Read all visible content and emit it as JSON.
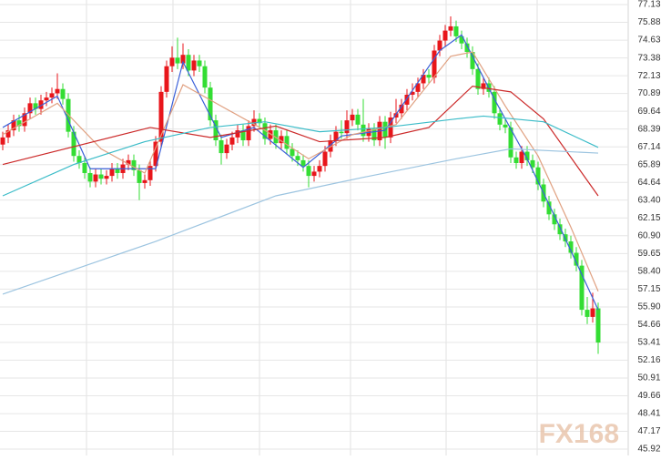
{
  "chart_data": {
    "type": "candlestick",
    "ylim": [
      45.92,
      77.13
    ],
    "yticks": [
      77.13,
      75.88,
      74.63,
      73.38,
      72.13,
      70.89,
      69.64,
      68.39,
      67.14,
      65.89,
      64.64,
      {
        "value": 63.4,
        "label": "63.40"
      },
      62.15,
      {
        "value": 60.9,
        "label": "60.90"
      },
      59.65,
      {
        "value": 58.4,
        "label": "58.40"
      },
      57.15,
      {
        "value": 55.9,
        "label": "55.90"
      },
      54.66,
      53.41,
      52.16,
      50.91,
      49.66,
      48.41,
      47.17,
      45.92
    ],
    "grid": true,
    "up_color": "#e8161b",
    "down_color": "#33dd33",
    "open": [
      67.3,
      67.8,
      68.3,
      69.0,
      68.6,
      69.5,
      70.2,
      69.8,
      70.4,
      70.6,
      70.9,
      71.2,
      70.5,
      68.2,
      66.5,
      66.0,
      65.3,
      64.7,
      65.2,
      64.9,
      65.1,
      65.6,
      65.3,
      65.9,
      66.2,
      65.5,
      64.6,
      64.8,
      65.8,
      67.5,
      71.0,
      72.8,
      73.4,
      73.0,
      73.6,
      72.5,
      73.2,
      72.8,
      71.3,
      69.0,
      67.6,
      66.7,
      67.3,
      67.8,
      68.3,
      67.6,
      68.6,
      69.1,
      68.8,
      67.7,
      68.3,
      67.4,
      67.9,
      67.0,
      66.5,
      66.2,
      65.8,
      65.1,
      65.4,
      65.8,
      66.8,
      67.6,
      68.2,
      68.1,
      69.0,
      69.4,
      68.7,
      67.9,
      68.4,
      67.6,
      68.9,
      67.8,
      69.2,
      69.5,
      70.1,
      70.8,
      71.0,
      71.6,
      72.2,
      72.0,
      73.9,
      74.6,
      75.3,
      75.6,
      74.9,
      74.4,
      73.8,
      72.6,
      71.2,
      71.6,
      71.0,
      69.5,
      68.7,
      68.5,
      66.4,
      66.0,
      66.8,
      66.2,
      65.7,
      64.5,
      63.3,
      62.4,
      61.7,
      61.0,
      60.5,
      59.7,
      58.8,
      55.7,
      55.2,
      55.8
    ],
    "high": [
      68.2,
      68.7,
      69.4,
      69.4,
      69.9,
      70.6,
      70.6,
      70.8,
      71.0,
      71.3,
      72.3,
      71.6,
      70.9,
      68.6,
      66.9,
      66.4,
      65.7,
      65.6,
      65.6,
      65.5,
      66.0,
      66.0,
      66.3,
      66.6,
      66.6,
      65.9,
      65.2,
      66.2,
      67.9,
      71.4,
      73.2,
      74.2,
      74.8,
      74.4,
      74.0,
      73.6,
      73.6,
      73.2,
      71.7,
      69.4,
      68.0,
      67.7,
      68.2,
      68.7,
      68.7,
      69.0,
      69.7,
      69.5,
      69.2,
      68.7,
      68.7,
      68.3,
      68.3,
      67.4,
      66.9,
      66.6,
      66.2,
      65.8,
      66.2,
      67.2,
      68.0,
      68.6,
      69.0,
      69.7,
      69.8,
      69.8,
      70.5,
      68.8,
      68.8,
      69.3,
      69.3,
      69.6,
      70.5,
      70.5,
      71.2,
      71.6,
      72.0,
      72.6,
      72.6,
      74.3,
      75.0,
      75.7,
      76.3,
      76.0,
      75.3,
      74.8,
      74.2,
      73.0,
      72.0,
      72.0,
      71.4,
      69.9,
      69.1,
      68.9,
      66.8,
      67.2,
      67.2,
      66.6,
      66.1,
      64.9,
      63.7,
      62.8,
      62.1,
      61.4,
      60.9,
      60.1,
      59.2,
      56.6,
      56.9,
      56.2
    ],
    "low": [
      66.9,
      67.4,
      67.9,
      68.2,
      68.2,
      69.1,
      69.4,
      69.4,
      70.0,
      70.2,
      70.5,
      70.1,
      67.8,
      66.1,
      65.6,
      64.9,
      64.3,
      64.3,
      64.5,
      64.5,
      64.7,
      64.9,
      64.9,
      65.5,
      65.1,
      63.4,
      64.2,
      64.4,
      65.4,
      67.1,
      70.6,
      72.4,
      72.6,
      72.6,
      72.1,
      72.1,
      72.4,
      70.9,
      68.6,
      67.2,
      65.9,
      66.3,
      66.9,
      67.4,
      67.2,
      67.2,
      68.2,
      68.4,
      67.3,
      67.3,
      67.0,
      67.0,
      66.6,
      66.1,
      65.8,
      65.4,
      64.3,
      64.7,
      65.0,
      65.4,
      66.4,
      67.2,
      67.7,
      67.7,
      68.6,
      68.3,
      67.5,
      67.5,
      67.2,
      67.2,
      67.0,
      67.4,
      68.8,
      69.1,
      69.7,
      70.4,
      70.6,
      71.2,
      71.6,
      71.6,
      73.5,
      74.2,
      74.9,
      74.5,
      74.0,
      73.4,
      72.2,
      70.8,
      70.8,
      70.6,
      69.1,
      68.3,
      68.1,
      66.0,
      65.6,
      65.6,
      65.8,
      65.3,
      64.1,
      62.9,
      62.0,
      61.3,
      60.6,
      60.1,
      59.3,
      58.4,
      55.3,
      54.7,
      54.8,
      52.6
    ],
    "close": [
      67.8,
      68.3,
      69.0,
      68.6,
      69.5,
      70.2,
      69.8,
      70.4,
      70.6,
      70.9,
      71.2,
      70.5,
      68.2,
      66.5,
      66.0,
      65.3,
      64.7,
      65.2,
      64.9,
      65.1,
      65.6,
      65.3,
      65.9,
      66.2,
      65.5,
      64.6,
      64.8,
      65.8,
      67.5,
      71.0,
      72.8,
      73.4,
      73.0,
      73.6,
      72.5,
      73.2,
      72.8,
      71.3,
      69.0,
      67.6,
      66.7,
      67.3,
      67.8,
      68.3,
      67.6,
      68.6,
      69.1,
      68.8,
      67.7,
      68.3,
      67.4,
      67.9,
      67.0,
      66.5,
      66.2,
      65.8,
      65.1,
      65.4,
      65.8,
      66.8,
      67.6,
      68.2,
      68.1,
      69.0,
      69.4,
      68.7,
      67.9,
      68.4,
      67.6,
      68.9,
      67.8,
      69.2,
      69.5,
      70.1,
      70.8,
      71.0,
      71.6,
      72.2,
      72.0,
      73.9,
      74.6,
      75.3,
      75.6,
      74.9,
      74.4,
      73.8,
      72.6,
      71.2,
      71.6,
      71.0,
      69.5,
      68.7,
      68.5,
      66.4,
      66.0,
      66.8,
      66.2,
      65.7,
      64.5,
      63.3,
      62.4,
      61.7,
      61.0,
      60.5,
      59.7,
      58.8,
      55.7,
      55.2,
      55.8,
      53.4
    ],
    "lines": [
      {
        "color": "#3a5fd8",
        "x": [
          0,
          10,
          16,
          22,
          28,
          33,
          40,
          46,
          55,
          62,
          70,
          80,
          84,
          90,
          96,
          102,
          109
        ],
        "values": [
          68.5,
          70.7,
          65.6,
          65.6,
          65.6,
          73.1,
          67.8,
          68.5,
          65.7,
          67.9,
          68.3,
          73.9,
          75.0,
          70.5,
          66.3,
          61.5,
          55.7
        ]
      },
      {
        "color": "#e0a080",
        "x": [
          0,
          10,
          18,
          26,
          33,
          40,
          48,
          56,
          64,
          72,
          82,
          86,
          92,
          98,
          104,
          109
        ],
        "values": [
          68.0,
          70.2,
          67.0,
          65.3,
          71.5,
          70.0,
          68.3,
          66.3,
          68.0,
          68.7,
          73.5,
          73.8,
          70.0,
          66.5,
          61.5,
          57.0
        ]
      },
      {
        "color": "#cc2a2a",
        "x": [
          0,
          27,
          38,
          50,
          58,
          70,
          78,
          86,
          93,
          99,
          109
        ],
        "values": [
          65.9,
          68.5,
          67.8,
          68.6,
          67.5,
          67.8,
          68.5,
          71.4,
          71.0,
          69.1,
          63.7
        ]
      },
      {
        "color": "#3bbcc8",
        "x": [
          0,
          13,
          26,
          38,
          48,
          58,
          70,
          83,
          88,
          99,
          109
        ],
        "values": [
          63.7,
          65.9,
          67.5,
          68.5,
          68.9,
          68.2,
          68.5,
          69.1,
          69.3,
          68.9,
          67.1
        ]
      },
      {
        "color": "#9cc4e0",
        "x": [
          0,
          28,
          50,
          66,
          83,
          93,
          109
        ],
        "values": [
          56.8,
          60.5,
          63.7,
          65.0,
          66.3,
          67.0,
          66.7
        ]
      }
    ],
    "watermark": "FX168"
  }
}
